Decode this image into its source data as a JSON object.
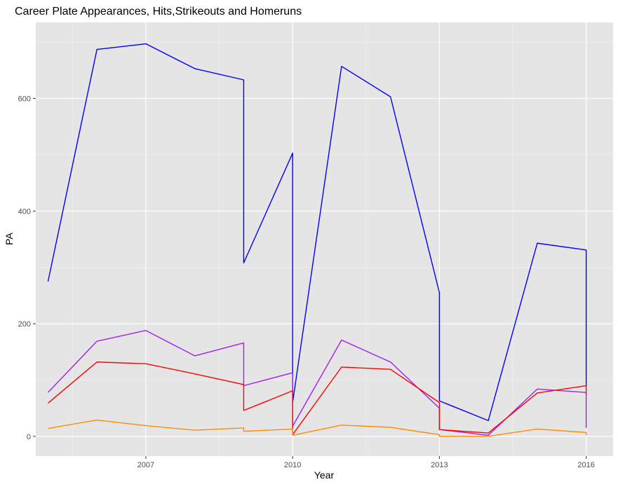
{
  "chart_data": {
    "type": "line",
    "title": "Career Plate Appearances, Hits,Strikeouts and Homeruns",
    "xlabel": "Year",
    "ylabel": "PA",
    "xlim": [
      2004.75,
      2016.55
    ],
    "ylim": [
      -35,
      735
    ],
    "x_ticks": [
      2007,
      2010,
      2013,
      2016
    ],
    "y_ticks": [
      0,
      200,
      400,
      600
    ],
    "grid": true,
    "legend": "none",
    "series": [
      {
        "color": "#0000FF",
        "x": [
          2005,
          2006,
          2007,
          2008,
          2009,
          2009,
          2010,
          2010,
          2011,
          2012,
          2013,
          2013,
          2014,
          2015,
          2016,
          2016
        ],
        "values": [
          275,
          687,
          697,
          653,
          633,
          308,
          503,
          60,
          657,
          603,
          255,
          63,
          28,
          343,
          331,
          88
        ]
      },
      {
        "color": "#A020F0",
        "x": [
          2005,
          2006,
          2007,
          2008,
          2009,
          2009,
          2010,
          2010,
          2011,
          2012,
          2013,
          2013,
          2014,
          2015,
          2016,
          2016
        ],
        "values": [
          78,
          169,
          188,
          143,
          166,
          90,
          113,
          18,
          171,
          132,
          50,
          12,
          2,
          84,
          78,
          15
        ]
      },
      {
        "color": "#FF0000",
        "x": [
          2005,
          2006,
          2007,
          2008,
          2009,
          2009,
          2010,
          2010,
          2011,
          2012,
          2013,
          2013,
          2014,
          2015,
          2016,
          2016
        ],
        "values": [
          59,
          132,
          129,
          111,
          92,
          46,
          81,
          3,
          123,
          119,
          60,
          12,
          6,
          77,
          90,
          74
        ]
      },
      {
        "color": "#FF8C00",
        "x": [
          2005,
          2006,
          2007,
          2008,
          2009,
          2009,
          2010,
          2010,
          2011,
          2012,
          2013,
          2013,
          2014,
          2015,
          2016,
          2016
        ],
        "values": [
          14,
          29,
          19,
          11,
          15,
          9,
          13,
          2,
          20,
          16,
          3,
          0,
          0,
          13,
          7,
          2
        ]
      }
    ]
  }
}
